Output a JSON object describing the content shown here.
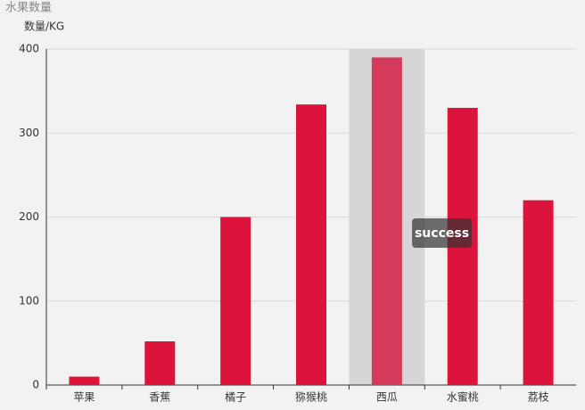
{
  "chart_data": {
    "type": "bar",
    "title": "水果数量",
    "y_axis_label": "数量/KG",
    "categories": [
      "苹果",
      "香蕉",
      "橘子",
      "猕猴桃",
      "西瓜",
      "水蜜桃",
      "荔枝"
    ],
    "values": [
      10,
      52,
      200,
      334,
      390,
      330,
      220
    ],
    "color": "#dc143c",
    "ylim": [
      0,
      400
    ],
    "yticks": [
      0,
      100,
      200,
      300,
      400
    ],
    "grid": true,
    "tooltip": "success"
  }
}
